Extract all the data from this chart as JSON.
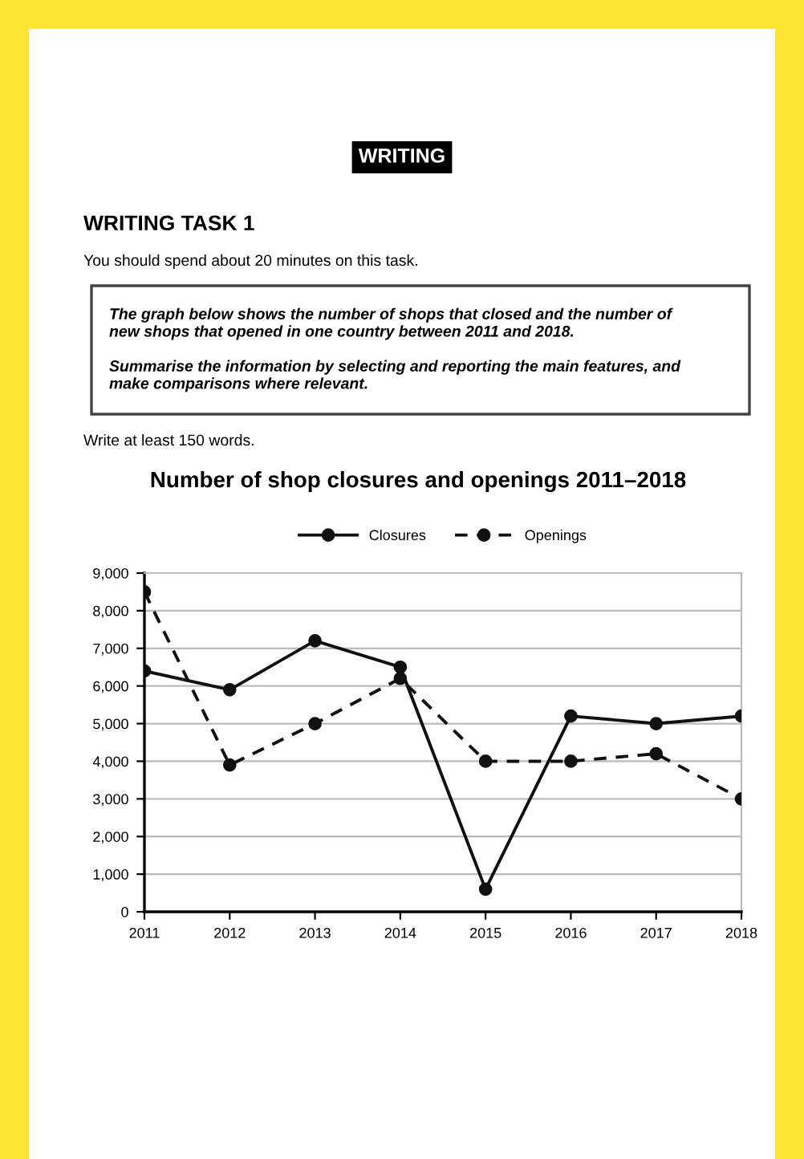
{
  "chart_data": {
    "type": "line",
    "title": "Number of shop closures and openings 2011–2018",
    "annotations": [
      "WRITING",
      "WRITING TASK 1",
      "You should spend about 20 minutes on this task.",
      "The graph below shows the number of shops that closed and the number of\nnew shops that opened in one country between 2011 and 2018.\n\nSummarise the information by selecting and reporting the main features, and\nmake comparisons where relevant.",
      "Write at least 150 words."
    ],
    "categories": [
      "2011",
      "2012",
      "2013",
      "2014",
      "2015",
      "2016",
      "2017",
      "2018"
    ],
    "series": [
      {
        "name": "Closures",
        "color": "#111111",
        "line_style": "solid",
        "values": [
          6400,
          5900,
          7200,
          6500,
          600,
          5200,
          5000,
          5200
        ]
      },
      {
        "name": "Openings",
        "color": "#111111",
        "line_style": "dashed",
        "values": [
          8500,
          3900,
          5000,
          6200,
          4000,
          4000,
          4200,
          3000
        ]
      }
    ],
    "ylim": [
      0,
      9000
    ],
    "yticks": [
      {
        "value": 0,
        "label": "0"
      },
      {
        "value": 1000,
        "label": "1,000"
      },
      {
        "value": 2000,
        "label": "2,000"
      },
      {
        "value": 3000,
        "label": "3,000"
      },
      {
        "value": 4000,
        "label": "4,000"
      },
      {
        "value": 5000,
        "label": "5,000"
      },
      {
        "value": 6000,
        "label": "6,000"
      },
      {
        "value": 7000,
        "label": "7,000"
      },
      {
        "value": 8000,
        "label": "8,000"
      },
      {
        "value": 9000,
        "label": "9,000"
      }
    ],
    "grid": "y",
    "legend": "top",
    "marker": "circle"
  }
}
